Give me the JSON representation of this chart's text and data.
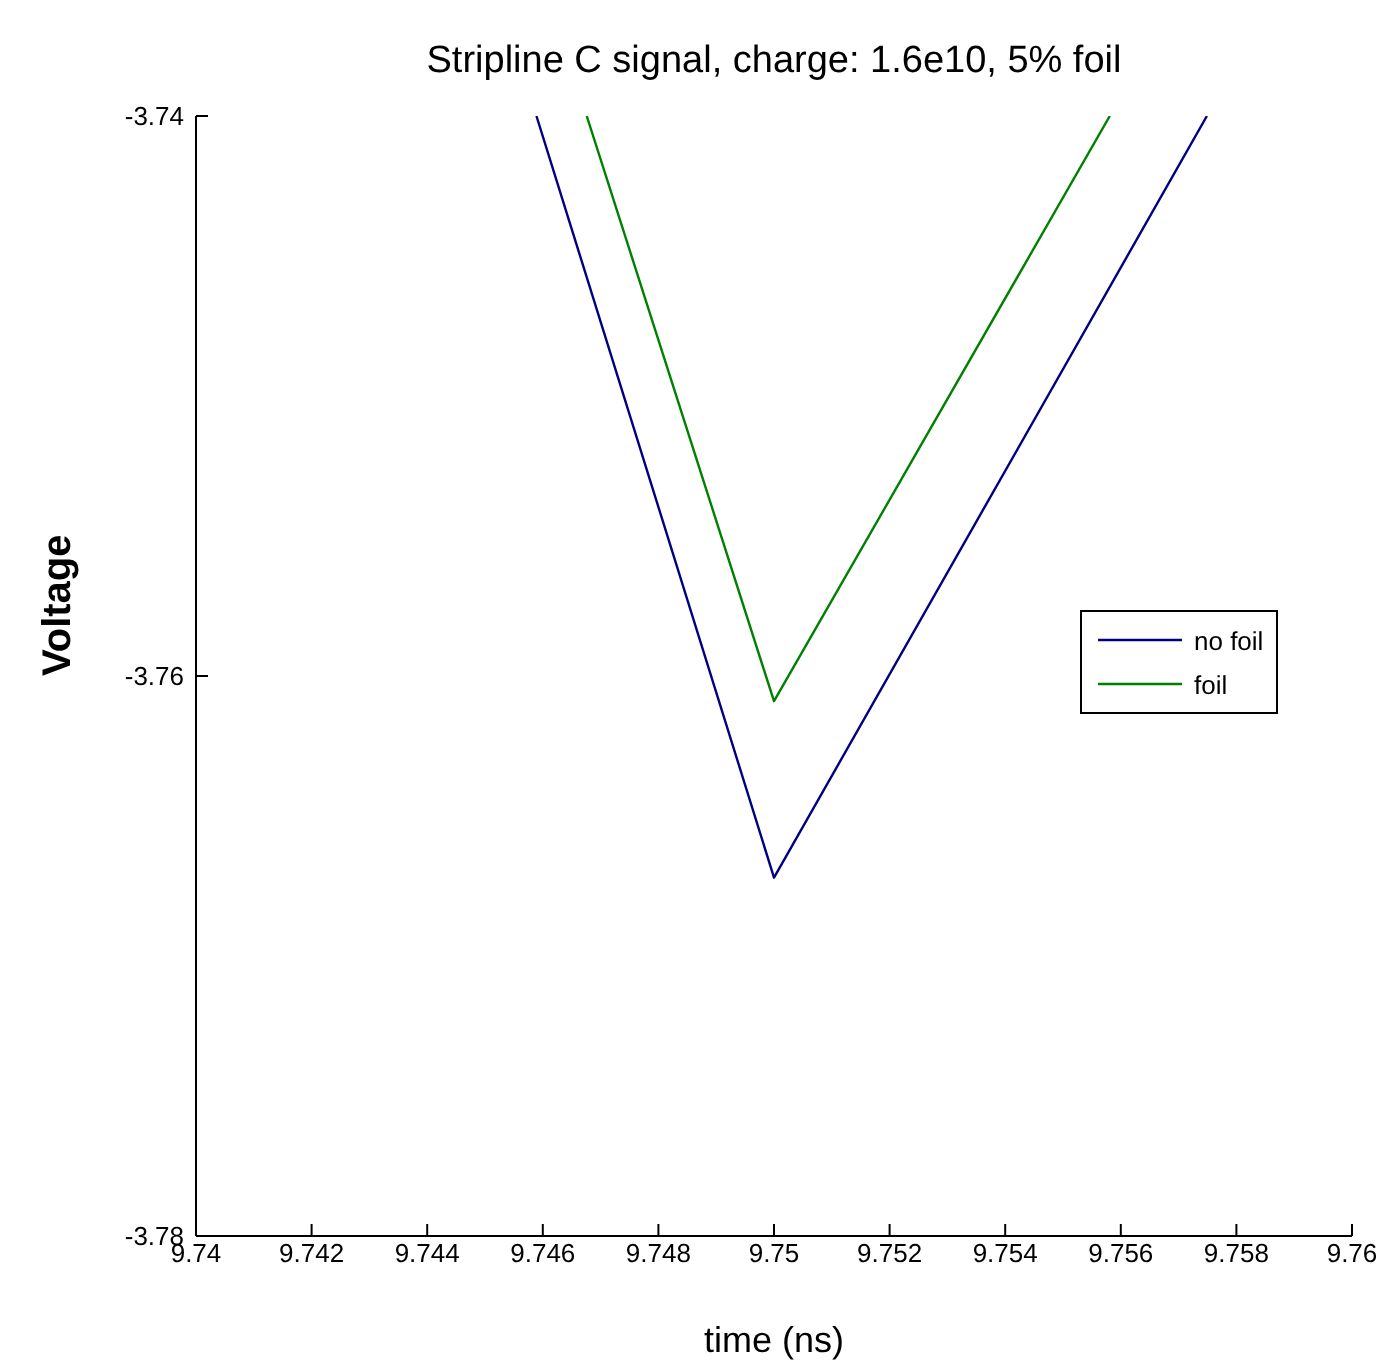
{
  "chart_data": {
    "type": "line",
    "title": "Stripline C signal, charge: 1.6e10, 5% foil",
    "xlabel": "time (ns)",
    "ylabel": "Voltage",
    "series": [
      {
        "name": "no foil",
        "color": "#000080",
        "x": [
          9.74589,
          9.75,
          9.75749
        ],
        "values": [
          -3.74,
          -3.7672,
          -3.74
        ]
      },
      {
        "name": "foil",
        "color": "#008000",
        "x": [
          9.74676,
          9.75,
          9.75581
        ],
        "values": [
          -3.74,
          -3.7609,
          -3.74
        ]
      }
    ],
    "xlim": [
      9.74,
      9.76
    ],
    "xticks": [
      9.74,
      9.742,
      9.744,
      9.746,
      9.748,
      9.75,
      9.752,
      9.754,
      9.756,
      9.758,
      9.76
    ],
    "ylim": [
      -3.78,
      -3.74
    ],
    "yticks": [
      -3.78,
      -3.76,
      -3.74
    ],
    "grid": false,
    "legend": "right",
    "marker": "none",
    "line_style": "solid"
  }
}
